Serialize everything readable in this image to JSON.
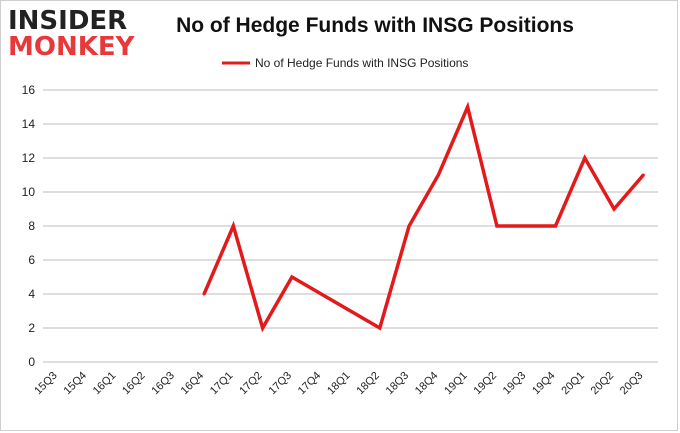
{
  "logo": {
    "line1": "INSIDER",
    "line2": "MONKEY"
  },
  "colors": {
    "line": "#e31a1c",
    "grid": "#bdbdbd",
    "logo_red": "#e8383a"
  },
  "chart_data": {
    "type": "line",
    "title": "No of Hedge Funds with INSG Positions",
    "xlabel": "",
    "ylabel": "",
    "ylim": [
      0,
      16
    ],
    "yticks": [
      0,
      2,
      4,
      6,
      8,
      10,
      12,
      14,
      16
    ],
    "grid": true,
    "legend_position": "top-center",
    "categories": [
      "15Q3",
      "15Q4",
      "16Q1",
      "16Q2",
      "16Q3",
      "16Q4",
      "17Q1",
      "17Q2",
      "17Q3",
      "17Q4",
      "18Q1",
      "18Q2",
      "18Q3",
      "18Q4",
      "19Q1",
      "19Q2",
      "19Q3",
      "19Q4",
      "20Q1",
      "20Q2",
      "20Q3"
    ],
    "series": [
      {
        "name": "No of Hedge Funds with INSG Positions",
        "values": [
          null,
          null,
          null,
          null,
          null,
          4,
          8,
          2,
          5,
          4,
          3,
          2,
          8,
          11,
          15,
          8,
          8,
          8,
          12,
          9,
          11
        ]
      }
    ]
  }
}
